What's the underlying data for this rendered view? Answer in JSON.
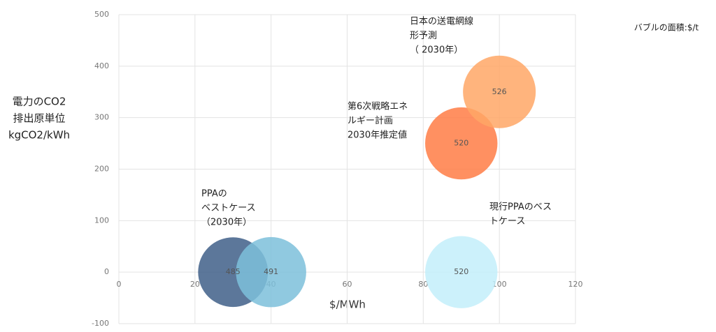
{
  "chart_data": {
    "type": "bubble",
    "ylabel": [
      "電力のCO2",
      "排出原単位",
      "kgCO2/kWh"
    ],
    "xlabel": "$/MWh",
    "size_note": "バブルの面積:$/t",
    "x": [
      30,
      40,
      90,
      100,
      90
    ],
    "values": [
      0,
      0,
      250,
      350,
      0
    ],
    "sizes": [
      485,
      491,
      520,
      526,
      520
    ],
    "colors": [
      "#3f5f88",
      "#7dbfdb",
      "#ff7d45",
      "#ffa766",
      "#c3eefa"
    ],
    "xlim": [
      0,
      120
    ],
    "xticks": [
      0,
      20,
      40,
      60,
      80,
      100,
      120
    ],
    "ylim": [
      -100,
      500
    ],
    "yticks": [
      -100,
      0,
      100,
      200,
      300,
      400,
      500
    ],
    "grid": true,
    "annotations": [
      [
        "PPAの",
        "ベストケース",
        "（2030年）"
      ],
      [
        "第6次戦略エネ",
        "ルギー計画",
        "2030年推定値"
      ],
      [
        "日本の送電網線",
        "形予測",
        "（ 2030年）"
      ],
      [
        "現行PPAのベス",
        "トケース"
      ]
    ]
  }
}
